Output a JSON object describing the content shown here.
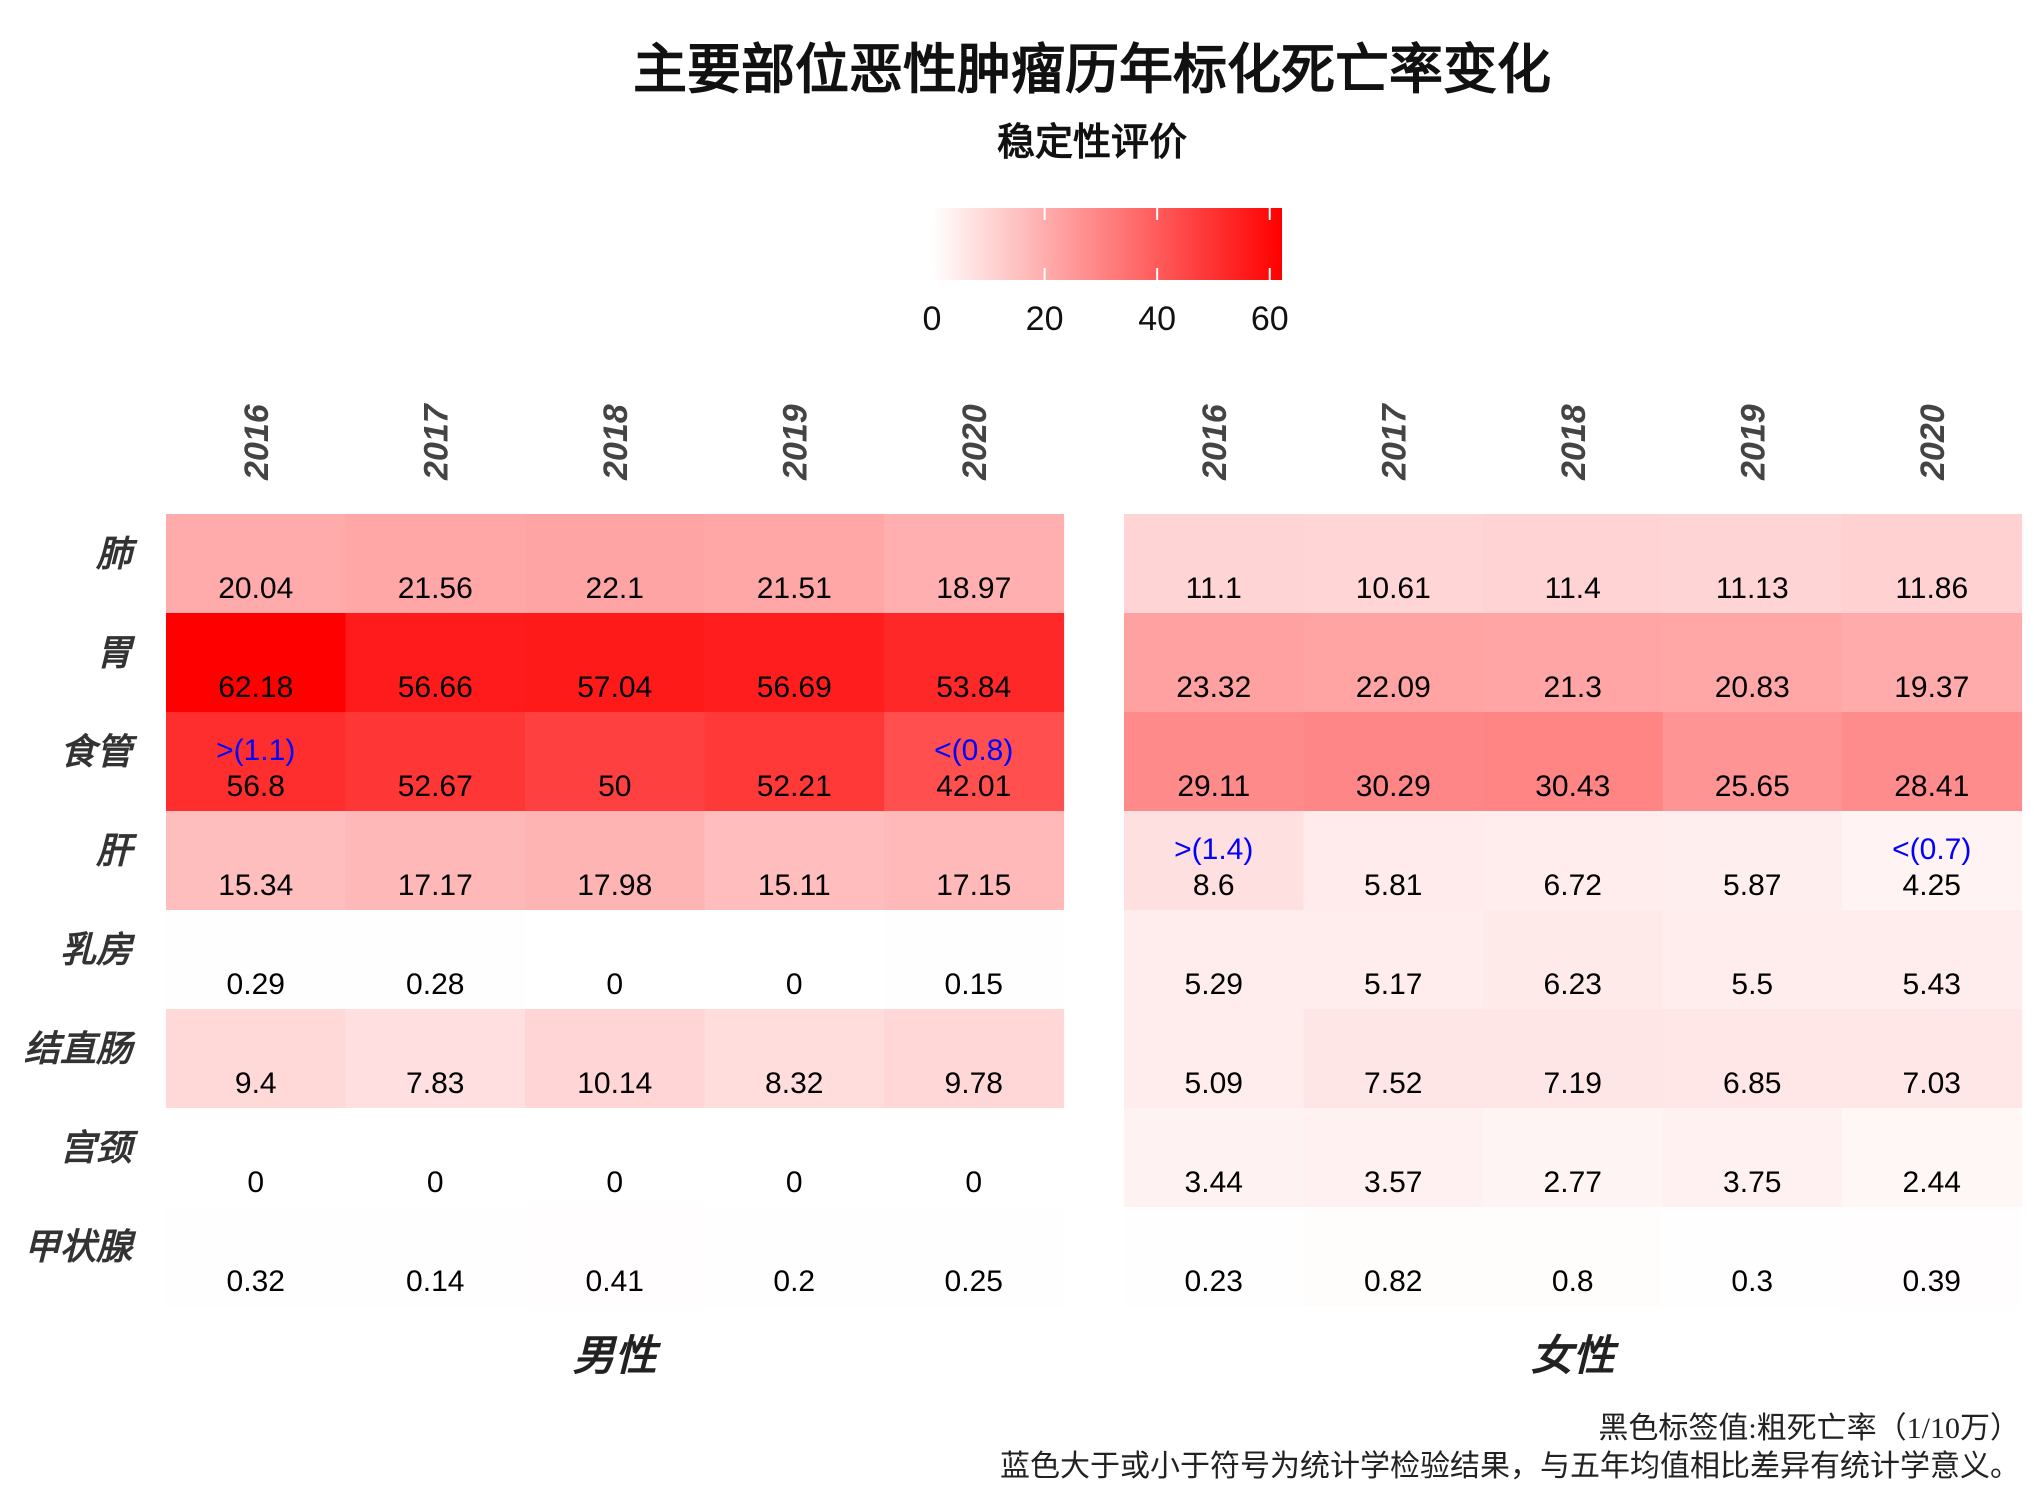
{
  "chart_data": {
    "type": "heatmap",
    "title": "主要部位恶性肿瘤历年标化死亡率变化",
    "subtitle": "稳定性评价",
    "legend": {
      "ticks": [
        0,
        20,
        40,
        60
      ],
      "range": [
        0,
        62.18
      ],
      "low_color": "#ffffff",
      "high_color": "#ff0000",
      "position": "top"
    },
    "rows": [
      "肺",
      "胃",
      "食管",
      "肝",
      "乳房",
      "结直肠",
      "宫颈",
      "甲状腺"
    ],
    "panels": [
      {
        "name": "男性",
        "years": [
          "2016",
          "2017",
          "2018",
          "2019",
          "2020"
        ],
        "fill_values": [
          [
            20.4,
            21.7,
            22.3,
            21.8,
            19.5
          ],
          [
            62.18,
            55.5,
            55.8,
            55.0,
            52.5
          ],
          [
            51.0,
            49.0,
            46.5,
            48.5,
            43.0
          ],
          [
            15.8,
            17.3,
            18.2,
            16.0,
            17.0
          ],
          [
            0.3,
            0.3,
            0.0,
            0.0,
            0.2
          ],
          [
            9.4,
            7.83,
            10.14,
            8.32,
            9.78
          ],
          [
            0,
            0,
            0,
            0,
            0
          ],
          [
            0.32,
            0.14,
            0.41,
            0.2,
            0.25
          ]
        ],
        "labels": [
          [
            "20.04",
            "21.56",
            "22.1",
            "21.51",
            "18.97"
          ],
          [
            "62.18",
            "56.66",
            "57.04",
            "56.69",
            "53.84"
          ],
          [
            "56.8",
            "52.67",
            "50",
            "52.21",
            "42.01"
          ],
          [
            "15.34",
            "17.17",
            "17.98",
            "15.11",
            "17.15"
          ],
          [
            "0.29",
            "0.28",
            "0",
            "0",
            "0.15"
          ],
          [
            "9.4",
            "7.83",
            "10.14",
            "8.32",
            "9.78"
          ],
          [
            "0",
            "0",
            "0",
            "0",
            "0"
          ],
          [
            "0.32",
            "0.14",
            "0.41",
            "0.2",
            "0.25"
          ]
        ],
        "annotations": [
          [
            "",
            "",
            "",
            "",
            ""
          ],
          [
            "",
            "",
            "",
            "",
            ""
          ],
          [
            ">(1.1)",
            "",
            "",
            "",
            "<(0.8)"
          ],
          [
            "",
            "",
            "",
            "",
            ""
          ],
          [
            "",
            "",
            "",
            "",
            ""
          ],
          [
            "",
            "",
            "",
            "",
            ""
          ],
          [
            "",
            "",
            "",
            "",
            ""
          ],
          [
            "",
            "",
            "",
            "",
            ""
          ]
        ]
      },
      {
        "name": "女性",
        "years": [
          "2016",
          "2017",
          "2018",
          "2019",
          "2020"
        ],
        "fill_values": [
          [
            10.5,
            10.2,
            10.8,
            10.6,
            11.2
          ],
          [
            22.8,
            22.4,
            22.0,
            21.4,
            20.5
          ],
          [
            28.5,
            29.6,
            29.8,
            26.2,
            28.0
          ],
          [
            7.6,
            4.9,
            4.7,
            4.2,
            3.0
          ],
          [
            4.6,
            4.5,
            5.0,
            4.6,
            4.6
          ],
          [
            4.7,
            6.2,
            6.1,
            5.8,
            5.9
          ],
          [
            3.2,
            3.3,
            2.6,
            3.4,
            2.3
          ],
          [
            0.23,
            0.82,
            0.8,
            0.3,
            0.39
          ]
        ],
        "labels": [
          [
            "11.1",
            "10.61",
            "11.4",
            "11.13",
            "11.86"
          ],
          [
            "23.32",
            "22.09",
            "21.3",
            "20.83",
            "19.37"
          ],
          [
            "29.11",
            "30.29",
            "30.43",
            "25.65",
            "28.41"
          ],
          [
            "8.6",
            "5.81",
            "6.72",
            "5.87",
            "4.25"
          ],
          [
            "5.29",
            "5.17",
            "6.23",
            "5.5",
            "5.43"
          ],
          [
            "5.09",
            "7.52",
            "7.19",
            "6.85",
            "7.03"
          ],
          [
            "3.44",
            "3.57",
            "2.77",
            "3.75",
            "2.44"
          ],
          [
            "0.23",
            "0.82",
            "0.8",
            "0.3",
            "0.39"
          ]
        ],
        "annotations": [
          [
            "",
            "",
            "",
            "",
            ""
          ],
          [
            "",
            "",
            "",
            "",
            ""
          ],
          [
            "",
            "",
            "",
            "",
            ""
          ],
          [
            ">(1.4)",
            "",
            "",
            "",
            "<(0.7)"
          ],
          [
            "",
            "",
            "",
            "",
            ""
          ],
          [
            "",
            "",
            "",
            "",
            ""
          ],
          [
            "",
            "",
            "",
            "",
            ""
          ],
          [
            "",
            "",
            "",
            "",
            ""
          ]
        ]
      }
    ],
    "label_color": "#000000",
    "annotation_color": "#0000ff",
    "caption": [
      "黑色标签值:粗死亡率（1/10万）",
      "蓝色大于或小于符号为统计学检验结果，与五年均值相比差异有统计学意义。"
    ]
  }
}
